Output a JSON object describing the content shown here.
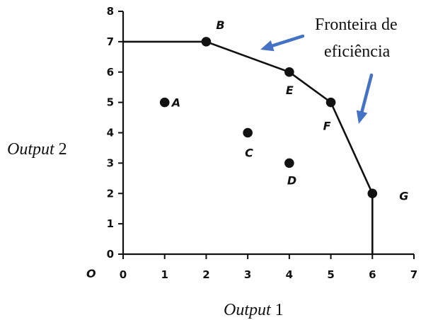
{
  "chart_data": {
    "type": "scatter",
    "origin_label": "O",
    "xlabel": {
      "italic": "Output",
      "rest": " 1"
    },
    "ylabel": {
      "italic": "Output",
      "rest": " 2"
    },
    "xlim": [
      0,
      7
    ],
    "ylim": [
      0,
      8
    ],
    "xticks": [
      "0",
      "1",
      "2",
      "3",
      "4",
      "5",
      "6",
      "7"
    ],
    "yticks": [
      "0",
      "1",
      "2",
      "3",
      "4",
      "5",
      "6",
      "7",
      "8"
    ],
    "grid": false,
    "points": [
      {
        "label": "A",
        "x": 1,
        "y": 5
      },
      {
        "label": "B",
        "x": 2,
        "y": 7
      },
      {
        "label": "C",
        "x": 3,
        "y": 4
      },
      {
        "label": "D",
        "x": 4,
        "y": 3
      },
      {
        "label": "E",
        "x": 4,
        "y": 6
      },
      {
        "label": "F",
        "x": 5,
        "y": 5
      },
      {
        "label": "G",
        "x": 6,
        "y": 2
      }
    ],
    "frontier": [
      {
        "x": 0,
        "y": 7
      },
      {
        "x": 2,
        "y": 7
      },
      {
        "x": 4,
        "y": 6
      },
      {
        "x": 5,
        "y": 5
      },
      {
        "x": 6,
        "y": 2
      },
      {
        "x": 6,
        "y": 0
      }
    ],
    "annotation": {
      "lines": [
        "Fronteira de",
        "eficiência"
      ]
    },
    "arrow_color": "#4472C4"
  }
}
